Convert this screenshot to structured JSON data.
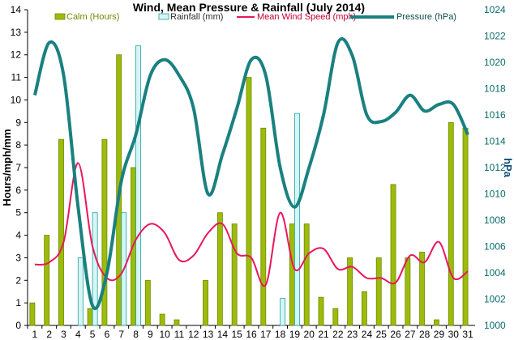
{
  "chart_data": {
    "type": "bar",
    "title": "Wind, Mean Pressure & Rainfall (July 2014)",
    "xlabel": "",
    "ylabel": "Hours/mph/mm",
    "y2label": "hPa",
    "ylim": [
      0,
      14
    ],
    "y2lim": [
      1000,
      1024
    ],
    "yticks": [
      "0",
      "1",
      "2",
      "3",
      "4",
      "5",
      "6",
      "7",
      "8",
      "9",
      "10",
      "11",
      "12",
      "13",
      "14"
    ],
    "y2ticks": [
      "1000",
      "1002",
      "1004",
      "1006",
      "1008",
      "1010",
      "1012",
      "1014",
      "1016",
      "1018",
      "1020",
      "1022",
      "1024"
    ],
    "grid": false,
    "legend_position": "top",
    "categories": [
      "1",
      "2",
      "3",
      "4",
      "5",
      "6",
      "7",
      "8",
      "9",
      "10",
      "11",
      "12",
      "13",
      "14",
      "15",
      "16",
      "17",
      "18",
      "19",
      "20",
      "21",
      "22",
      "23",
      "24",
      "25",
      "26",
      "27",
      "28",
      "29",
      "30",
      "31"
    ],
    "series": [
      {
        "name": "Calm (Hours)",
        "kind": "bar",
        "axis": "left",
        "color": "#9dbb0a",
        "values": [
          1,
          4,
          8.25,
          0,
          0.75,
          8.25,
          12,
          7,
          2,
          0.5,
          0.25,
          0,
          2,
          5,
          4.5,
          11,
          8.75,
          0,
          4.5,
          4.5,
          1.25,
          0.75,
          3,
          1.5,
          3,
          6.25,
          3,
          3.25,
          0.25,
          9,
          8.75
        ]
      },
      {
        "name": "Rainfall (mm)",
        "kind": "bar",
        "axis": "left",
        "color": "#d4f6f6",
        "values": [
          0,
          0,
          0,
          3,
          5,
          0,
          5,
          12.4,
          0,
          0,
          0,
          0,
          0,
          0,
          0,
          0,
          0,
          1.2,
          9.4,
          0,
          0,
          0,
          0,
          0,
          0,
          0,
          0,
          0,
          0,
          0,
          0
        ]
      },
      {
        "name": "Mean Wind Speed (mph)",
        "kind": "line",
        "axis": "left",
        "color": "#e8175d",
        "values": [
          2.7,
          2.8,
          3.7,
          7.2,
          3.5,
          2.1,
          2.3,
          3.8,
          4.5,
          4.1,
          2.9,
          3.1,
          4.1,
          4.5,
          3.2,
          3.0,
          1.8,
          5.0,
          2.5,
          3.2,
          3.4,
          2.5,
          2.6,
          2.1,
          2.1,
          1.9,
          3.1,
          2.8,
          3.7,
          2.1,
          2.4
        ]
      },
      {
        "name": "Pressure (hPa)",
        "kind": "line",
        "axis": "right",
        "color": "#1a8080",
        "values": [
          1017.5,
          1021.5,
          1019.0,
          1009.0,
          1001.5,
          1004.0,
          1011.0,
          1014.5,
          1019.0,
          1020.2,
          1019.0,
          1016.5,
          1010.0,
          1013.0,
          1016.5,
          1020.2,
          1019.0,
          1012.0,
          1009.0,
          1012.0,
          1016.0,
          1021.5,
          1020.5,
          1016.0,
          1015.5,
          1016.2,
          1017.5,
          1016.3,
          1016.8,
          1016.8,
          1014.5
        ]
      }
    ]
  }
}
